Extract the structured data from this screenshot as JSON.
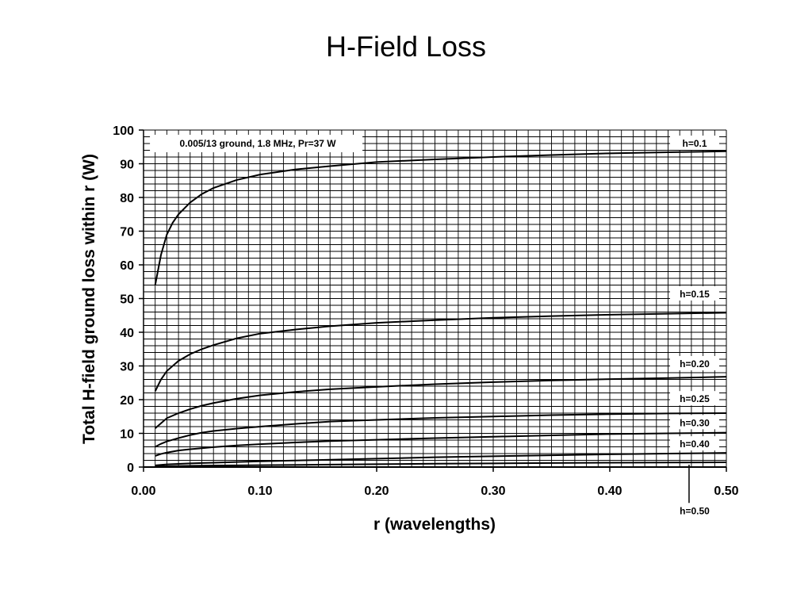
{
  "title": "H-Field Loss",
  "chart_data": {
    "type": "line",
    "title": "H-Field Loss",
    "xlabel": "r (wavelengths)",
    "ylabel": "Total H-field ground loss within r (W)",
    "xlim": [
      0,
      0.5
    ],
    "ylim": [
      0,
      100
    ],
    "x_ticks": [
      "0.00",
      "0.10",
      "0.20",
      "0.30",
      "0.40",
      "0.50"
    ],
    "y_ticks": [
      "0",
      "10",
      "20",
      "30",
      "40",
      "50",
      "60",
      "70",
      "80",
      "90",
      "100"
    ],
    "grid": true,
    "annotation": "0.005/13 ground, 1.8 MHz, Pr=37 W",
    "series": [
      {
        "name": "h=0.1",
        "points": [
          [
            0.01,
            54
          ],
          [
            0.015,
            63
          ],
          [
            0.02,
            69
          ],
          [
            0.025,
            72.5
          ],
          [
            0.03,
            75
          ],
          [
            0.04,
            78.5
          ],
          [
            0.05,
            81
          ],
          [
            0.06,
            82.8
          ],
          [
            0.08,
            85.2
          ],
          [
            0.1,
            86.8
          ],
          [
            0.13,
            88.3
          ],
          [
            0.16,
            89.3
          ],
          [
            0.2,
            90.5
          ],
          [
            0.25,
            91.3
          ],
          [
            0.3,
            92
          ],
          [
            0.35,
            92.6
          ],
          [
            0.4,
            93.1
          ],
          [
            0.45,
            93.4
          ],
          [
            0.5,
            93.7
          ]
        ]
      },
      {
        "name": "h=0.15",
        "points": [
          [
            0.01,
            22.5
          ],
          [
            0.015,
            26
          ],
          [
            0.02,
            28.5
          ],
          [
            0.03,
            31.5
          ],
          [
            0.04,
            33.5
          ],
          [
            0.05,
            35
          ],
          [
            0.06,
            36.2
          ],
          [
            0.08,
            38.2
          ],
          [
            0.1,
            39.6
          ],
          [
            0.13,
            40.8
          ],
          [
            0.16,
            41.8
          ],
          [
            0.2,
            42.8
          ],
          [
            0.25,
            43.6
          ],
          [
            0.3,
            44.3
          ],
          [
            0.35,
            44.8
          ],
          [
            0.4,
            45.2
          ],
          [
            0.45,
            45.5
          ],
          [
            0.5,
            45.8
          ]
        ]
      },
      {
        "name": "h=0.20",
        "points": [
          [
            0.01,
            11.5
          ],
          [
            0.015,
            13
          ],
          [
            0.02,
            14.5
          ],
          [
            0.03,
            16
          ],
          [
            0.04,
            17.2
          ],
          [
            0.05,
            18.2
          ],
          [
            0.06,
            19
          ],
          [
            0.08,
            20.3
          ],
          [
            0.1,
            21.3
          ],
          [
            0.13,
            22.3
          ],
          [
            0.16,
            23.1
          ],
          [
            0.2,
            23.8
          ],
          [
            0.25,
            24.6
          ],
          [
            0.3,
            25.2
          ],
          [
            0.35,
            25.7
          ],
          [
            0.4,
            26.1
          ],
          [
            0.45,
            26.4
          ],
          [
            0.5,
            26.8
          ]
        ]
      },
      {
        "name": "h=0.25",
        "points": [
          [
            0.01,
            6
          ],
          [
            0.015,
            6.9
          ],
          [
            0.02,
            7.6
          ],
          [
            0.03,
            8.6
          ],
          [
            0.04,
            9.5
          ],
          [
            0.05,
            10.2
          ],
          [
            0.06,
            10.7
          ],
          [
            0.08,
            11.4
          ],
          [
            0.1,
            12
          ],
          [
            0.13,
            12.8
          ],
          [
            0.16,
            13.5
          ],
          [
            0.2,
            14
          ],
          [
            0.25,
            14.6
          ],
          [
            0.3,
            15
          ],
          [
            0.35,
            15.4
          ],
          [
            0.4,
            15.7
          ],
          [
            0.45,
            15.9
          ],
          [
            0.5,
            16
          ]
        ]
      },
      {
        "name": "h=0.30",
        "points": [
          [
            0.01,
            3.3
          ],
          [
            0.015,
            3.9
          ],
          [
            0.02,
            4.3
          ],
          [
            0.03,
            4.9
          ],
          [
            0.04,
            5.3
          ],
          [
            0.05,
            5.6
          ],
          [
            0.06,
            5.9
          ],
          [
            0.08,
            6.4
          ],
          [
            0.1,
            6.8
          ],
          [
            0.13,
            7.3
          ],
          [
            0.16,
            7.7
          ],
          [
            0.2,
            8.1
          ],
          [
            0.25,
            8.6
          ],
          [
            0.3,
            9
          ],
          [
            0.35,
            9.4
          ],
          [
            0.4,
            9.8
          ],
          [
            0.45,
            10
          ],
          [
            0.5,
            10.2
          ]
        ]
      },
      {
        "name": "h=0.40",
        "points": [
          [
            0.01,
            0.5
          ],
          [
            0.02,
            0.8
          ],
          [
            0.04,
            1.1
          ],
          [
            0.06,
            1.3
          ],
          [
            0.08,
            1.5
          ],
          [
            0.1,
            1.7
          ],
          [
            0.15,
            2.1
          ],
          [
            0.2,
            2.5
          ],
          [
            0.25,
            2.9
          ],
          [
            0.3,
            3.2
          ],
          [
            0.35,
            3.5
          ],
          [
            0.4,
            3.8
          ],
          [
            0.45,
            4
          ],
          [
            0.5,
            4.2
          ]
        ]
      },
      {
        "name": "h=0.50",
        "points": [
          [
            0.01,
            0.2
          ],
          [
            0.05,
            0.4
          ],
          [
            0.1,
            0.55
          ],
          [
            0.15,
            0.7
          ],
          [
            0.2,
            0.85
          ],
          [
            0.25,
            1
          ],
          [
            0.3,
            1.1
          ],
          [
            0.35,
            1.2
          ],
          [
            0.4,
            1.3
          ],
          [
            0.45,
            1.35
          ],
          [
            0.5,
            1.4
          ]
        ]
      }
    ],
    "labels": [
      {
        "text": "h=0.1",
        "y": 96
      },
      {
        "text": "h=0.15",
        "y": 51.3
      },
      {
        "text": "h=0.20",
        "y": 30.6
      },
      {
        "text": "h=0.25",
        "y": 20.2
      },
      {
        "text": "h=0.30",
        "y": 13.1
      },
      {
        "text": "h=0.40",
        "y": 6.8
      },
      {
        "text": "h=0.50",
        "y": -13
      }
    ]
  }
}
